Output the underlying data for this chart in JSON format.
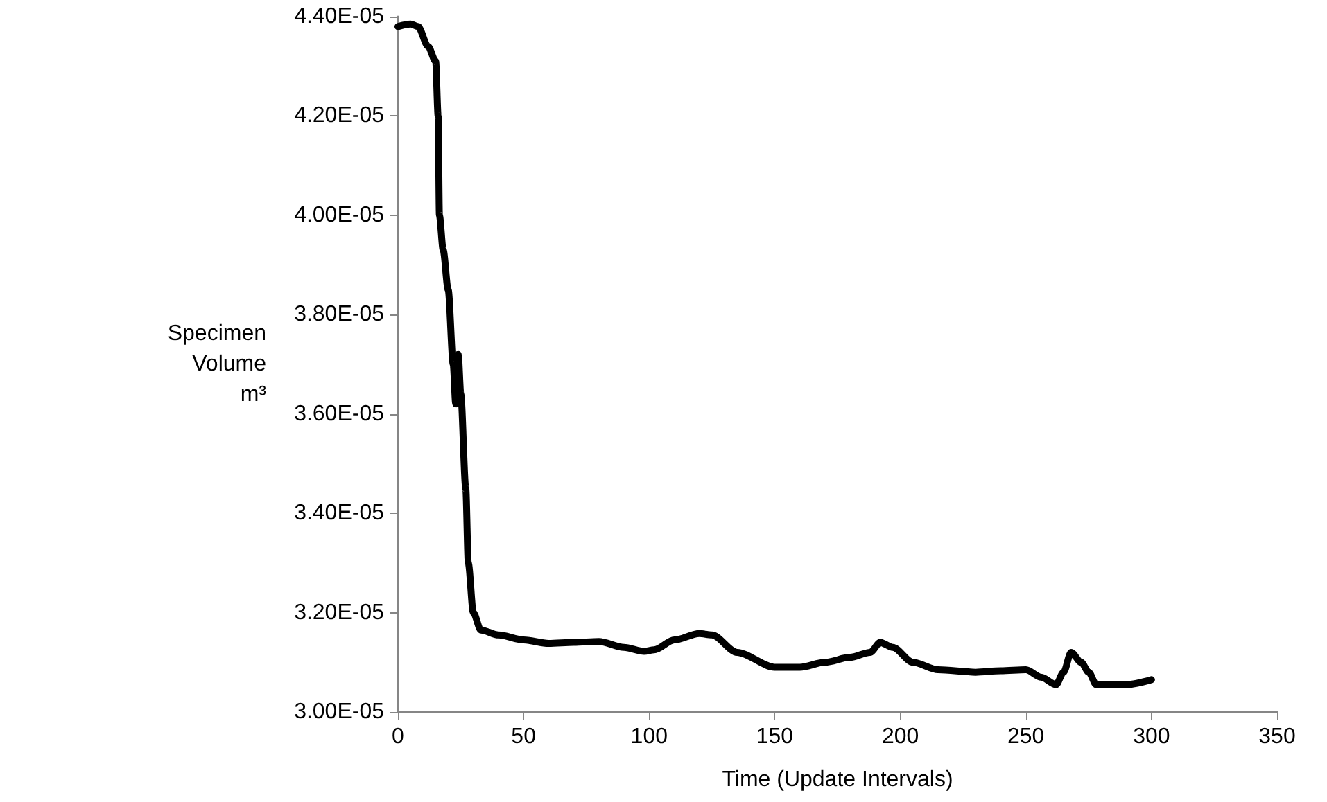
{
  "chart_data": {
    "type": "line",
    "xlabel": "Time (Update Intervals)",
    "ylabel": "Specimen Volume m³",
    "x": [
      0,
      5,
      8,
      12,
      15,
      16,
      16.5,
      18,
      20,
      22,
      23,
      24,
      25,
      27,
      28,
      30,
      33,
      40,
      50,
      60,
      70,
      80,
      90,
      98,
      102,
      110,
      120,
      125,
      135,
      150,
      160,
      170,
      180,
      188,
      192,
      197,
      205,
      215,
      230,
      240,
      250,
      256,
      262,
      265,
      268,
      272,
      275,
      278,
      290,
      300
    ],
    "series": [
      {
        "color": "#000000",
        "values": [
          4.38e-05,
          4.385e-05,
          4.38e-05,
          4.34e-05,
          4.31e-05,
          4.2e-05,
          4e-05,
          3.93e-05,
          3.85e-05,
          3.7e-05,
          3.62e-05,
          3.72e-05,
          3.64e-05,
          3.45e-05,
          3.3e-05,
          3.2e-05,
          3.165e-05,
          3.155e-05,
          3.145e-05,
          3.138e-05,
          3.14e-05,
          3.142e-05,
          3.13e-05,
          3.122e-05,
          3.125e-05,
          3.145e-05,
          3.158e-05,
          3.155e-05,
          3.12e-05,
          3.09e-05,
          3.09e-05,
          3.1e-05,
          3.11e-05,
          3.12e-05,
          3.14e-05,
          3.13e-05,
          3.1e-05,
          3.085e-05,
          3.08e-05,
          3.083e-05,
          3.085e-05,
          3.07e-05,
          3.055e-05,
          3.08e-05,
          3.12e-05,
          3.1e-05,
          3.08e-05,
          3.055e-05,
          3.055e-05,
          3.065e-05
        ]
      }
    ],
    "xlim": [
      0,
      350
    ],
    "xticks": [
      0,
      50,
      100,
      150,
      200,
      250,
      300,
      350
    ],
    "ylim": [
      3e-05,
      4.4e-05
    ],
    "yticks": [
      {
        "value": 3e-05,
        "label": "3.00E-05"
      },
      {
        "value": 3.2e-05,
        "label": "3.20E-05"
      },
      {
        "value": 3.4e-05,
        "label": "3.40E-05"
      },
      {
        "value": 3.6e-05,
        "label": "3.60E-05"
      },
      {
        "value": 3.8e-05,
        "label": "3.80E-05"
      },
      {
        "value": 4e-05,
        "label": "4.00E-05"
      },
      {
        "value": 4.2e-05,
        "label": "4.20E-05"
      },
      {
        "value": 4.4e-05,
        "label": "4.40E-05"
      }
    ],
    "grid": false,
    "marker": "none",
    "line_style": "solid"
  }
}
